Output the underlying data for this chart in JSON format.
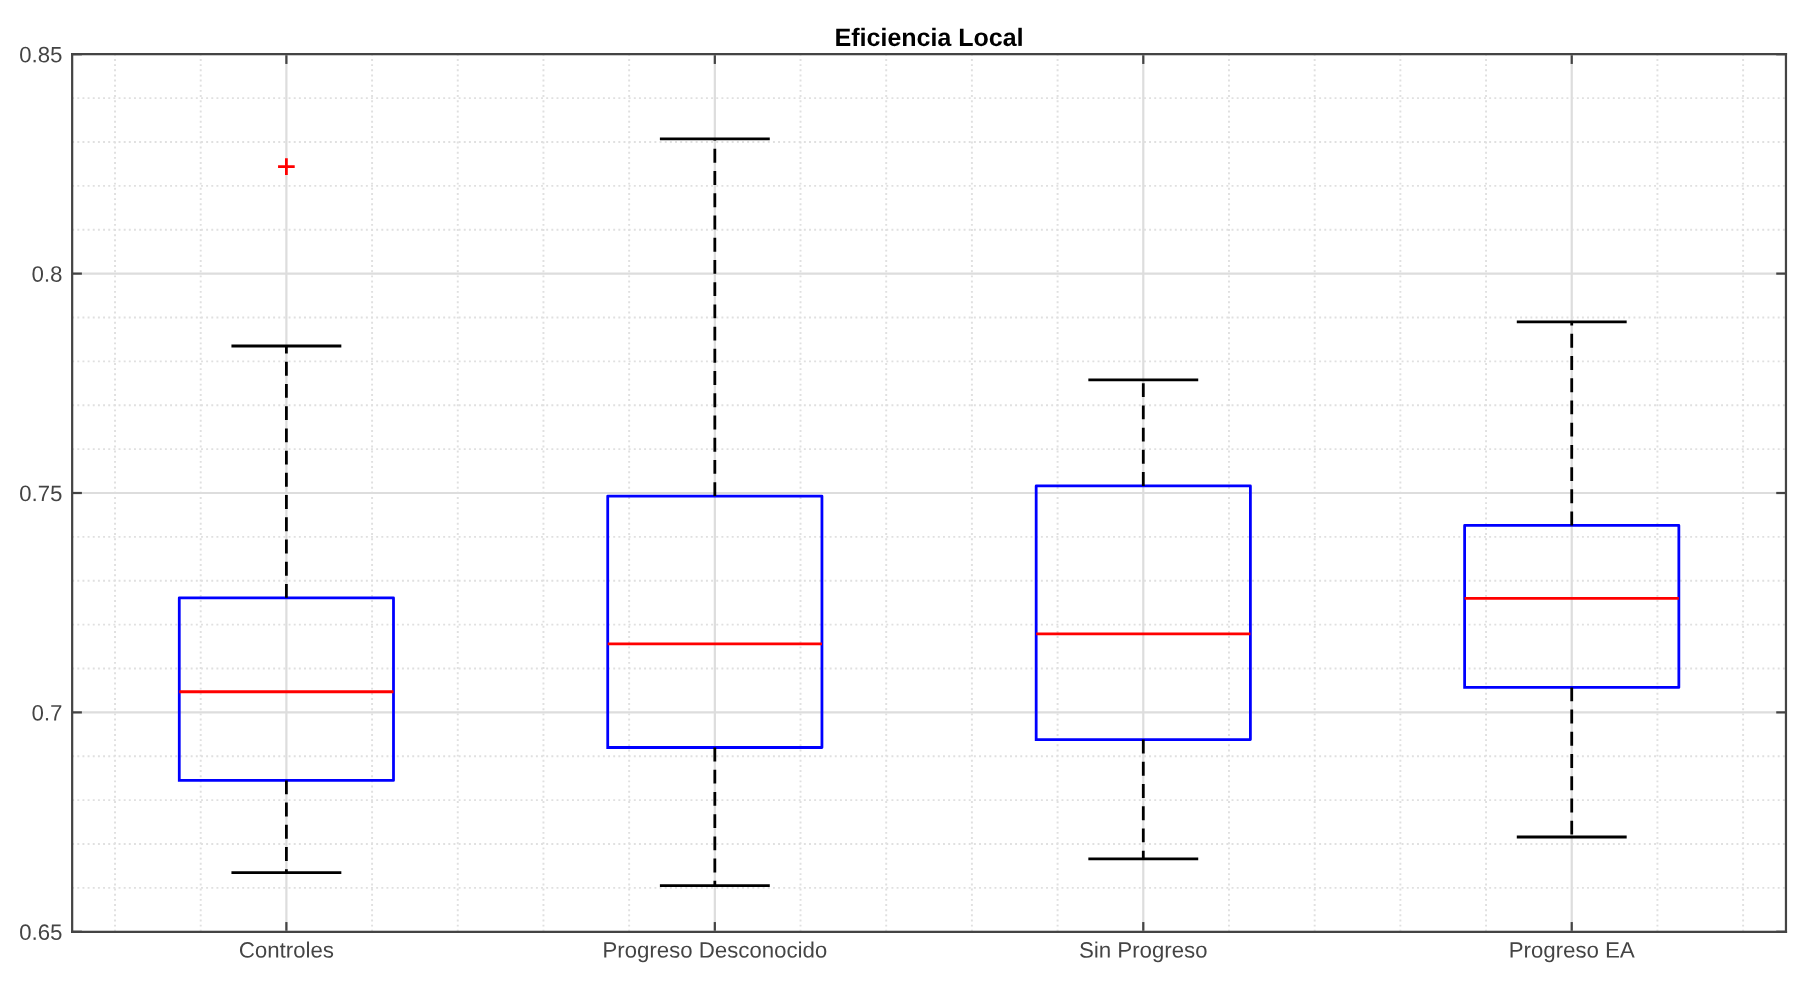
{
  "chart_data": {
    "type": "box",
    "title": "Eficiencia Local",
    "categories": [
      "Controles",
      "Progreso Desconocido",
      "Sin Progreso",
      "Progreso EA"
    ],
    "color": "#0000ff",
    "boxes": [
      {
        "low": 0.6635,
        "q1": 0.6845,
        "median": 0.7047,
        "q3": 0.7261,
        "high": 0.7835,
        "outliers": [
          0.8244
        ]
      },
      {
        "low": 0.6605,
        "q1": 0.692,
        "median": 0.7156,
        "q3": 0.7493,
        "high": 0.8307
      },
      {
        "low": 0.6666,
        "q1": 0.6938,
        "median": 0.7179,
        "q3": 0.7516,
        "high": 0.7758
      },
      {
        "low": 0.6716,
        "q1": 0.7057,
        "median": 0.726,
        "q3": 0.7426,
        "high": 0.789
      }
    ],
    "ylim": [
      0.65,
      0.85
    ],
    "yticks": [
      0.65,
      0.7,
      0.75,
      0.8,
      0.85
    ],
    "grid": true
  }
}
